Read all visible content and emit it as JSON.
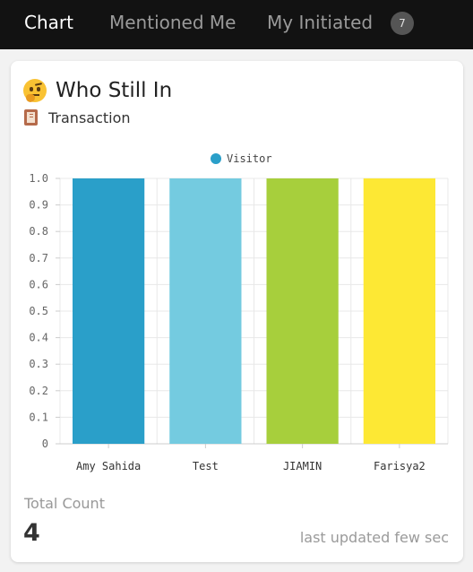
{
  "tabs": [
    {
      "label": "Chart",
      "active": true
    },
    {
      "label": "Mentioned Me",
      "active": false
    },
    {
      "label": "My Initiated",
      "active": false,
      "count": "7"
    }
  ],
  "card": {
    "title": "Who Still In",
    "title_icon": "thinking-face-emoji",
    "subtitle": "Transaction",
    "subtitle_icon": "book-emoji",
    "total_label": "Total Count",
    "total_value": "4",
    "updated_text": "last updated few sec"
  },
  "chart_data": {
    "type": "bar",
    "legend_position": "top-center",
    "grid": true,
    "ylim": [
      0,
      1
    ],
    "yticks": [
      "0",
      "0.1",
      "0.2",
      "0.3",
      "0.4",
      "0.5",
      "0.6",
      "0.7",
      "0.8",
      "0.9",
      "1.0"
    ],
    "categories": [
      "Amy Sahida",
      "Test",
      "JIAMIN",
      "Farisya2"
    ],
    "series": [
      {
        "name": "Visitor",
        "values": [
          1,
          1,
          1,
          1
        ],
        "color": "#2a9fc9"
      }
    ],
    "bar_colors": [
      "#2a9fc9",
      "#74cbe0",
      "#a7cf3c",
      "#fde834"
    ],
    "grid_color": "#e8e8e8",
    "axis_color": "#cccccc"
  }
}
